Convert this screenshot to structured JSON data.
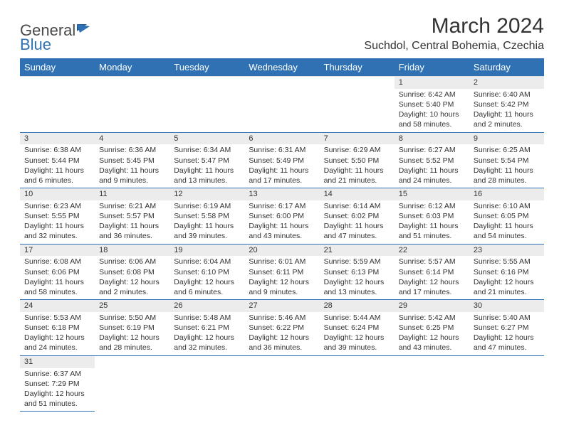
{
  "brand": {
    "general": "General",
    "blue": "Blue"
  },
  "title": "March 2024",
  "location": "Suchdol, Central Bohemia, Czechia",
  "colors": {
    "header_bg": "#2f71b3",
    "header_fg": "#ffffff",
    "daynum_bg": "#ececec",
    "row_border": "#2f71b3",
    "text": "#333333",
    "background": "#ffffff"
  },
  "week_days": [
    "Sunday",
    "Monday",
    "Tuesday",
    "Wednesday",
    "Thursday",
    "Friday",
    "Saturday"
  ],
  "weeks": [
    [
      null,
      null,
      null,
      null,
      null,
      {
        "n": "1",
        "sr": "Sunrise: 6:42 AM",
        "ss": "Sunset: 5:40 PM",
        "dl": "Daylight: 10 hours and 58 minutes."
      },
      {
        "n": "2",
        "sr": "Sunrise: 6:40 AM",
        "ss": "Sunset: 5:42 PM",
        "dl": "Daylight: 11 hours and 2 minutes."
      }
    ],
    [
      {
        "n": "3",
        "sr": "Sunrise: 6:38 AM",
        "ss": "Sunset: 5:44 PM",
        "dl": "Daylight: 11 hours and 6 minutes."
      },
      {
        "n": "4",
        "sr": "Sunrise: 6:36 AM",
        "ss": "Sunset: 5:45 PM",
        "dl": "Daylight: 11 hours and 9 minutes."
      },
      {
        "n": "5",
        "sr": "Sunrise: 6:34 AM",
        "ss": "Sunset: 5:47 PM",
        "dl": "Daylight: 11 hours and 13 minutes."
      },
      {
        "n": "6",
        "sr": "Sunrise: 6:31 AM",
        "ss": "Sunset: 5:49 PM",
        "dl": "Daylight: 11 hours and 17 minutes."
      },
      {
        "n": "7",
        "sr": "Sunrise: 6:29 AM",
        "ss": "Sunset: 5:50 PM",
        "dl": "Daylight: 11 hours and 21 minutes."
      },
      {
        "n": "8",
        "sr": "Sunrise: 6:27 AM",
        "ss": "Sunset: 5:52 PM",
        "dl": "Daylight: 11 hours and 24 minutes."
      },
      {
        "n": "9",
        "sr": "Sunrise: 6:25 AM",
        "ss": "Sunset: 5:54 PM",
        "dl": "Daylight: 11 hours and 28 minutes."
      }
    ],
    [
      {
        "n": "10",
        "sr": "Sunrise: 6:23 AM",
        "ss": "Sunset: 5:55 PM",
        "dl": "Daylight: 11 hours and 32 minutes."
      },
      {
        "n": "11",
        "sr": "Sunrise: 6:21 AM",
        "ss": "Sunset: 5:57 PM",
        "dl": "Daylight: 11 hours and 36 minutes."
      },
      {
        "n": "12",
        "sr": "Sunrise: 6:19 AM",
        "ss": "Sunset: 5:58 PM",
        "dl": "Daylight: 11 hours and 39 minutes."
      },
      {
        "n": "13",
        "sr": "Sunrise: 6:17 AM",
        "ss": "Sunset: 6:00 PM",
        "dl": "Daylight: 11 hours and 43 minutes."
      },
      {
        "n": "14",
        "sr": "Sunrise: 6:14 AM",
        "ss": "Sunset: 6:02 PM",
        "dl": "Daylight: 11 hours and 47 minutes."
      },
      {
        "n": "15",
        "sr": "Sunrise: 6:12 AM",
        "ss": "Sunset: 6:03 PM",
        "dl": "Daylight: 11 hours and 51 minutes."
      },
      {
        "n": "16",
        "sr": "Sunrise: 6:10 AM",
        "ss": "Sunset: 6:05 PM",
        "dl": "Daylight: 11 hours and 54 minutes."
      }
    ],
    [
      {
        "n": "17",
        "sr": "Sunrise: 6:08 AM",
        "ss": "Sunset: 6:06 PM",
        "dl": "Daylight: 11 hours and 58 minutes."
      },
      {
        "n": "18",
        "sr": "Sunrise: 6:06 AM",
        "ss": "Sunset: 6:08 PM",
        "dl": "Daylight: 12 hours and 2 minutes."
      },
      {
        "n": "19",
        "sr": "Sunrise: 6:04 AM",
        "ss": "Sunset: 6:10 PM",
        "dl": "Daylight: 12 hours and 6 minutes."
      },
      {
        "n": "20",
        "sr": "Sunrise: 6:01 AM",
        "ss": "Sunset: 6:11 PM",
        "dl": "Daylight: 12 hours and 9 minutes."
      },
      {
        "n": "21",
        "sr": "Sunrise: 5:59 AM",
        "ss": "Sunset: 6:13 PM",
        "dl": "Daylight: 12 hours and 13 minutes."
      },
      {
        "n": "22",
        "sr": "Sunrise: 5:57 AM",
        "ss": "Sunset: 6:14 PM",
        "dl": "Daylight: 12 hours and 17 minutes."
      },
      {
        "n": "23",
        "sr": "Sunrise: 5:55 AM",
        "ss": "Sunset: 6:16 PM",
        "dl": "Daylight: 12 hours and 21 minutes."
      }
    ],
    [
      {
        "n": "24",
        "sr": "Sunrise: 5:53 AM",
        "ss": "Sunset: 6:18 PM",
        "dl": "Daylight: 12 hours and 24 minutes."
      },
      {
        "n": "25",
        "sr": "Sunrise: 5:50 AM",
        "ss": "Sunset: 6:19 PM",
        "dl": "Daylight: 12 hours and 28 minutes."
      },
      {
        "n": "26",
        "sr": "Sunrise: 5:48 AM",
        "ss": "Sunset: 6:21 PM",
        "dl": "Daylight: 12 hours and 32 minutes."
      },
      {
        "n": "27",
        "sr": "Sunrise: 5:46 AM",
        "ss": "Sunset: 6:22 PM",
        "dl": "Daylight: 12 hours and 36 minutes."
      },
      {
        "n": "28",
        "sr": "Sunrise: 5:44 AM",
        "ss": "Sunset: 6:24 PM",
        "dl": "Daylight: 12 hours and 39 minutes."
      },
      {
        "n": "29",
        "sr": "Sunrise: 5:42 AM",
        "ss": "Sunset: 6:25 PM",
        "dl": "Daylight: 12 hours and 43 minutes."
      },
      {
        "n": "30",
        "sr": "Sunrise: 5:40 AM",
        "ss": "Sunset: 6:27 PM",
        "dl": "Daylight: 12 hours and 47 minutes."
      }
    ],
    [
      {
        "n": "31",
        "sr": "Sunrise: 6:37 AM",
        "ss": "Sunset: 7:29 PM",
        "dl": "Daylight: 12 hours and 51 minutes."
      },
      null,
      null,
      null,
      null,
      null,
      null
    ]
  ]
}
